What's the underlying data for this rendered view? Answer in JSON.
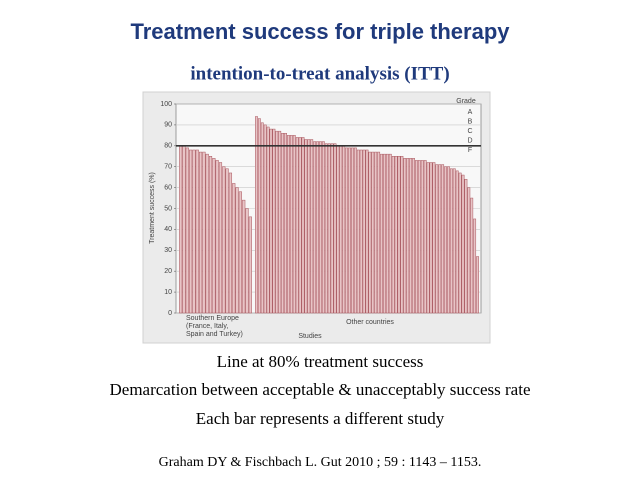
{
  "chart_data": {
    "type": "bar",
    "title": "Treatment success for triple therapy",
    "subtitle": "intention-to-treat analysis (ITT)",
    "y_label": "Treatment success (%)",
    "x_label": "Studies",
    "ylim": [
      0,
      100
    ],
    "yticks": [
      0,
      10,
      20,
      30,
      40,
      50,
      60,
      70,
      80,
      90,
      100
    ],
    "grid": true,
    "reference_line": 80,
    "grade_title": "Grade",
    "grades": [
      "A",
      "B",
      "C",
      "D",
      "F"
    ],
    "color": "#e8c4c6",
    "edge_color": "#a8545c",
    "groups": [
      {
        "label_lines": [
          "Southern Europe",
          "(France, Italy,",
          "Spain and Turkey)"
        ],
        "values": [
          80,
          80,
          79,
          78,
          78,
          78,
          77,
          77,
          76,
          75,
          74,
          73,
          72,
          70,
          69,
          67,
          62,
          60,
          58,
          54,
          50,
          46
        ]
      },
      {
        "label_lines": [
          "Other countries"
        ],
        "values": [
          94,
          93,
          91,
          90,
          89,
          88,
          88,
          87,
          87,
          86,
          86,
          85,
          85,
          85,
          84,
          84,
          84,
          83,
          83,
          83,
          82,
          82,
          82,
          82,
          81,
          81,
          81,
          81,
          80,
          80,
          80,
          79,
          79,
          79,
          79,
          78,
          78,
          78,
          78,
          77,
          77,
          77,
          77,
          76,
          76,
          76,
          76,
          75,
          75,
          75,
          75,
          74,
          74,
          74,
          74,
          73,
          73,
          73,
          73,
          72,
          72,
          72,
          71,
          71,
          71,
          70,
          70,
          69,
          69,
          68,
          67,
          66,
          64,
          60,
          55,
          45,
          27
        ]
      }
    ]
  },
  "slide": {
    "notes": [
      "Line at 80% treatment success",
      "Demarcation between acceptable & unacceptably success rate",
      "Each bar represents a different study"
    ],
    "citation": "Graham DY & Fischbach L. Gut 2010 ; 59 : 1143 – 1153."
  }
}
